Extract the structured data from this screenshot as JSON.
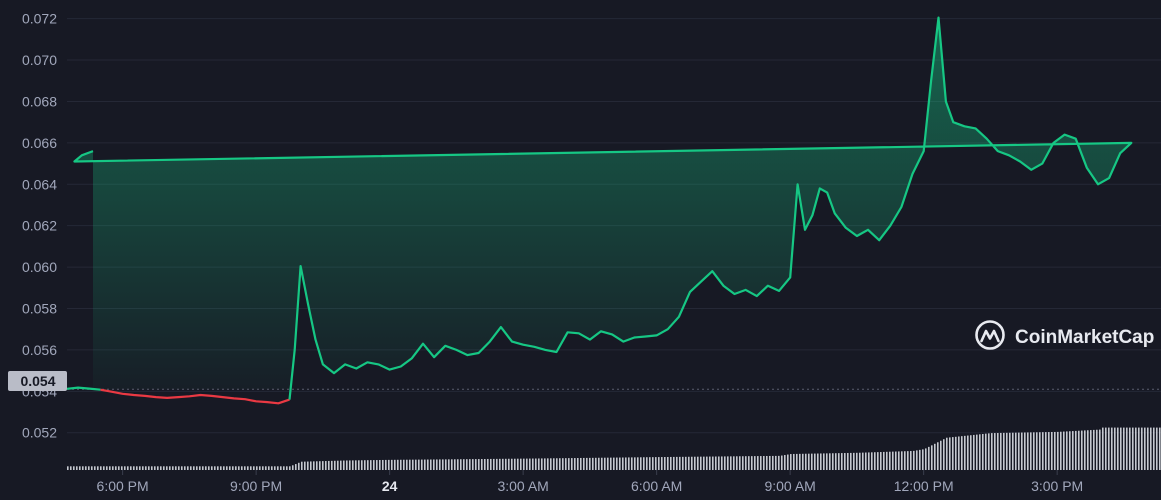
{
  "watermark": {
    "text": "CoinMarketCap"
  },
  "colors": {
    "background": "#171924",
    "grid": "#252836",
    "up_line": "#16c784",
    "down_line": "#ea3943",
    "baseline_badge": "#b9bcc7",
    "volume_bars": "#d5d7de",
    "tick_text": "#a1a7bb"
  },
  "icons": {
    "logo": "coinmarketcap-logo-icon"
  },
  "chart_data": {
    "type": "line",
    "title": "",
    "xlabel": "",
    "ylabel": "",
    "ylim": [
      0.0502,
      0.0729
    ],
    "grid": true,
    "y_ticks": [
      "0.052",
      "0.054",
      "0.056",
      "0.058",
      "0.060",
      "0.062",
      "0.064",
      "0.066",
      "0.068",
      "0.070",
      "0.072"
    ],
    "x_tick_labels": [
      {
        "label": "6:00 PM",
        "x": "18:00",
        "emphasis": false
      },
      {
        "label": "9:00 PM",
        "x": "21:00",
        "emphasis": false
      },
      {
        "label": "24",
        "x": "00:00",
        "emphasis": true
      },
      {
        "label": "3:00 AM",
        "x": "03:00",
        "emphasis": false
      },
      {
        "label": "6:00 AM",
        "x": "06:00",
        "emphasis": false
      },
      {
        "label": "9:00 AM",
        "x": "09:00",
        "emphasis": false
      },
      {
        "label": "12:00 PM",
        "x": "12:00",
        "emphasis": false
      },
      {
        "label": "3:00 PM",
        "x": "15:00",
        "emphasis": false
      }
    ],
    "baseline": {
      "label": "0.054",
      "value": 0.0541
    },
    "series": [
      {
        "values": [
          [
            "16:45",
            0.05412
          ],
          [
            "17:00",
            0.05418
          ],
          [
            "17:15",
            0.05413
          ],
          [
            "17:30",
            0.05408
          ],
          [
            "17:45",
            0.05398
          ],
          [
            "18:00",
            0.05388
          ],
          [
            "18:15",
            0.05382
          ],
          [
            "18:30",
            0.05378
          ],
          [
            "18:45",
            0.05372
          ],
          [
            "19:00",
            0.05368
          ],
          [
            "19:15",
            0.05372
          ],
          [
            "19:30",
            0.05376
          ],
          [
            "19:45",
            0.05382
          ],
          [
            "20:00",
            0.05378
          ],
          [
            "20:15",
            0.05372
          ],
          [
            "20:30",
            0.05366
          ],
          [
            "20:45",
            0.05362
          ],
          [
            "21:00",
            0.05352
          ],
          [
            "21:15",
            0.05348
          ],
          [
            "21:30",
            0.05342
          ],
          [
            "21:45",
            0.0536
          ],
          [
            "21:52",
            0.056
          ],
          [
            "22:00",
            0.06005
          ],
          [
            "22:10",
            0.0582
          ],
          [
            "22:20",
            0.0565
          ],
          [
            "22:30",
            0.0553
          ],
          [
            "22:45",
            0.05488
          ],
          [
            "23:00",
            0.0553
          ],
          [
            "23:15",
            0.0551
          ],
          [
            "23:30",
            0.0554
          ],
          [
            "23:45",
            0.0553
          ],
          [
            "00:00",
            0.05505
          ],
          [
            "00:15",
            0.0552
          ],
          [
            "00:30",
            0.0556
          ],
          [
            "00:45",
            0.0563
          ],
          [
            "01:00",
            0.05565
          ],
          [
            "01:15",
            0.0562
          ],
          [
            "01:30",
            0.056
          ],
          [
            "01:45",
            0.05575
          ],
          [
            "02:00",
            0.05585
          ],
          [
            "02:15",
            0.0564
          ],
          [
            "02:30",
            0.0571
          ],
          [
            "02:45",
            0.0564
          ],
          [
            "03:00",
            0.05625
          ],
          [
            "03:15",
            0.05615
          ],
          [
            "03:30",
            0.056
          ],
          [
            "03:45",
            0.0559
          ],
          [
            "04:00",
            0.05685
          ],
          [
            "04:15",
            0.0568
          ],
          [
            "04:30",
            0.0565
          ],
          [
            "04:45",
            0.0569
          ],
          [
            "05:00",
            0.05675
          ],
          [
            "05:15",
            0.0564
          ],
          [
            "05:30",
            0.0566
          ],
          [
            "05:45",
            0.05665
          ],
          [
            "06:00",
            0.0567
          ],
          [
            "06:15",
            0.057
          ],
          [
            "06:30",
            0.0576
          ],
          [
            "06:45",
            0.0588
          ],
          [
            "07:00",
            0.0593
          ],
          [
            "07:15",
            0.0598
          ],
          [
            "07:30",
            0.0591
          ],
          [
            "07:45",
            0.0587
          ],
          [
            "08:00",
            0.0589
          ],
          [
            "08:15",
            0.0586
          ],
          [
            "08:30",
            0.0591
          ],
          [
            "08:45",
            0.05885
          ],
          [
            "09:00",
            0.0595
          ],
          [
            "09:10",
            0.064
          ],
          [
            "09:20",
            0.0618
          ],
          [
            "09:30",
            0.0625
          ],
          [
            "09:40",
            0.0638
          ],
          [
            "09:50",
            0.0636
          ],
          [
            "10:00",
            0.0626
          ],
          [
            "10:15",
            0.0619
          ],
          [
            "10:30",
            0.0615
          ],
          [
            "10:45",
            0.0618
          ],
          [
            "11:00",
            0.0613
          ],
          [
            "11:15",
            0.062
          ],
          [
            "11:30",
            0.0629
          ],
          [
            "11:45",
            0.0645
          ],
          [
            "12:00",
            0.0656
          ],
          [
            "12:10",
            0.069
          ],
          [
            "12:20",
            0.07205
          ],
          [
            "12:30",
            0.068
          ],
          [
            "12:40",
            0.067
          ],
          [
            "12:55",
            0.0668
          ],
          [
            "13:10",
            0.0667
          ],
          [
            "13:25",
            0.0662
          ],
          [
            "13:40",
            0.0656
          ],
          [
            "13:55",
            0.0654
          ],
          [
            "14:10",
            0.0651
          ],
          [
            "14:25",
            0.0647
          ],
          [
            "14:40",
            0.065
          ],
          [
            "14:55",
            0.066
          ],
          [
            "15:10",
            0.0664
          ],
          [
            "15:25",
            0.0662
          ],
          [
            "15:40",
            0.0648
          ],
          [
            "15:55",
            0.064
          ],
          [
            "16:10",
            0.0643
          ],
          [
            "16:25",
            0.0655
          ],
          [
            "16:40",
            0.066
          ],
          [
            "16:55",
            0.0651
          ],
          [
            "17:05",
            0.0654
          ],
          [
            "17:20",
            0.0656
          ]
        ]
      }
    ],
    "volume": {
      "unit": "relative",
      "points": [
        [
          "16:45",
          0.12
        ],
        [
          "21:45",
          0.12
        ],
        [
          "22:00",
          0.27
        ],
        [
          "23:00",
          0.31
        ],
        [
          "00:00",
          0.33
        ],
        [
          "03:00",
          0.37
        ],
        [
          "06:00",
          0.42
        ],
        [
          "08:45",
          0.46
        ],
        [
          "09:00",
          0.52
        ],
        [
          "10:30",
          0.56
        ],
        [
          "11:45",
          0.62
        ],
        [
          "12:00",
          0.68
        ],
        [
          "12:30",
          1.05
        ],
        [
          "13:30",
          1.2
        ],
        [
          "15:00",
          1.24
        ],
        [
          "16:00",
          1.32
        ],
        [
          "17:20",
          1.38
        ]
      ]
    }
  }
}
